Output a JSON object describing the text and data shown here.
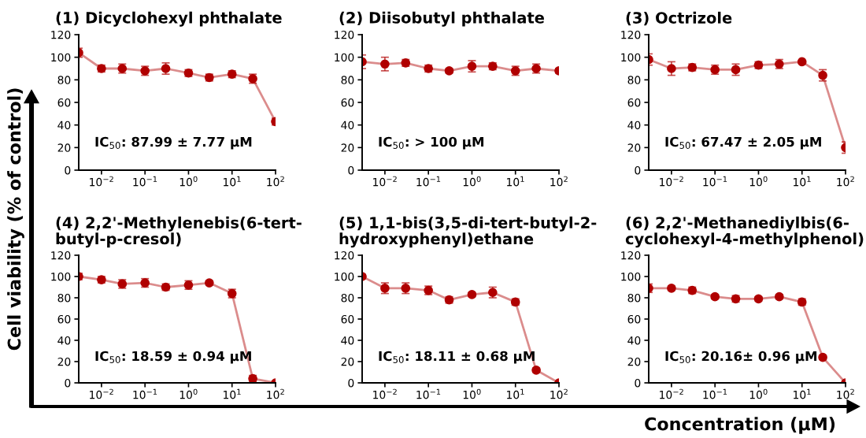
{
  "chart_data": [
    {
      "type": "line",
      "title": "(1) Dicyclohexyl phthalate",
      "x": [
        0.003,
        0.01,
        0.03,
        0.1,
        0.3,
        1,
        3,
        10,
        30,
        100
      ],
      "xlim": [
        0.003,
        100
      ],
      "ylim": [
        0,
        120
      ],
      "log": "x",
      "marker": "circle",
      "grid": false,
      "xticks": [
        {
          "value": 0.01,
          "label": "10$^{−2}$"
        },
        {
          "value": 0.1,
          "label": "10$^{−1}$"
        },
        {
          "value": 1,
          "label": "10$^{0}$"
        },
        {
          "value": 10,
          "label": "10$^{1}$"
        },
        {
          "value": 100,
          "label": "10$^{2}$"
        }
      ],
      "yticks": [
        0,
        20,
        40,
        60,
        80,
        100,
        120
      ],
      "series": [
        {
          "color": "#b00000",
          "values": [
            104,
            90,
            90,
            88,
            90,
            86,
            82,
            85,
            81,
            43
          ],
          "errors": [
            4,
            3,
            4,
            4,
            5,
            3,
            3,
            3,
            4,
            3
          ]
        }
      ],
      "annotations": [
        "IC$_{50}$: 87.99 ± 7.77 μM"
      ]
    },
    {
      "type": "line",
      "title": "(2) Diisobutyl phthalate",
      "x": [
        0.003,
        0.01,
        0.03,
        0.1,
        0.3,
        1,
        3,
        10,
        30,
        100
      ],
      "xlim": [
        0.003,
        100
      ],
      "ylim": [
        0,
        120
      ],
      "log": "x",
      "marker": "circle",
      "grid": false,
      "xticks": [
        {
          "value": 0.01,
          "label": "10$^{−2}$"
        },
        {
          "value": 0.1,
          "label": "10$^{−1}$"
        },
        {
          "value": 1,
          "label": "10$^{0}$"
        },
        {
          "value": 10,
          "label": "10$^{1}$"
        },
        {
          "value": 100,
          "label": "10$^{2}$"
        }
      ],
      "yticks": [
        0,
        20,
        40,
        60,
        80,
        100,
        120
      ],
      "series": [
        {
          "color": "#b00000",
          "values": [
            96,
            94,
            95,
            90,
            88,
            92,
            92,
            88,
            90,
            88
          ],
          "errors": [
            6,
            6,
            3,
            3,
            2,
            5,
            3,
            4,
            4,
            2
          ]
        }
      ],
      "annotations": [
        "IC$_{50}$: > 100 μM"
      ]
    },
    {
      "type": "line",
      "title": "(3) Octrizole",
      "x": [
        0.003,
        0.01,
        0.03,
        0.1,
        0.3,
        1,
        3,
        10,
        30,
        100
      ],
      "xlim": [
        0.003,
        100
      ],
      "ylim": [
        0,
        120
      ],
      "log": "x",
      "marker": "circle",
      "grid": false,
      "xticks": [
        {
          "value": 0.01,
          "label": "10$^{−2}$"
        },
        {
          "value": 0.1,
          "label": "10$^{−1}$"
        },
        {
          "value": 1,
          "label": "10$^{0}$"
        },
        {
          "value": 10,
          "label": "10$^{1}$"
        },
        {
          "value": 100,
          "label": "10$^{2}$"
        }
      ],
      "yticks": [
        0,
        20,
        40,
        60,
        80,
        100,
        120
      ],
      "series": [
        {
          "color": "#b00000",
          "values": [
            98,
            90,
            91,
            89,
            89,
            93,
            94,
            96,
            84,
            20
          ],
          "errors": [
            5,
            6,
            3,
            4,
            5,
            3,
            4,
            1,
            5,
            5
          ]
        }
      ],
      "annotations": [
        "IC$_{50}$: 67.47 ± 2.05 μM"
      ]
    },
    {
      "type": "line",
      "title": "(4) 2,2'-Methylenebis(6-tert-butyl-p-cresol)",
      "ylabel": "Cell viability (% of control)",
      "x": [
        0.003,
        0.01,
        0.03,
        0.1,
        0.3,
        1,
        3,
        10,
        30,
        100
      ],
      "xlim": [
        0.003,
        100
      ],
      "ylim": [
        0,
        120
      ],
      "log": "x",
      "marker": "circle",
      "grid": false,
      "xticks": [
        {
          "value": 0.01,
          "label": "10$^{−2}$"
        },
        {
          "value": 0.1,
          "label": "10$^{−1}$"
        },
        {
          "value": 1,
          "label": "10$^{0}$"
        },
        {
          "value": 10,
          "label": "10$^{1}$"
        },
        {
          "value": 100,
          "label": "10$^{2}$"
        }
      ],
      "yticks": [
        0,
        20,
        40,
        60,
        80,
        100,
        120
      ],
      "series": [
        {
          "color": "#b00000",
          "values": [
            100,
            97,
            93,
            94,
            90,
            92,
            94,
            84,
            4,
            0
          ],
          "errors": [
            3,
            3,
            4,
            4,
            3,
            4,
            2,
            4,
            3,
            1
          ]
        }
      ],
      "annotations": [
        "IC$_{50}$: 18.59 ± 0.94 μM"
      ]
    },
    {
      "type": "line",
      "title": "(5) 1,1-bis(3,5-di-tert-butyl-2-hydroxyphenyl)ethane",
      "xlabel": "Concentration (μM)",
      "x": [
        0.003,
        0.01,
        0.03,
        0.1,
        0.3,
        1,
        3,
        10,
        30,
        100
      ],
      "xlim": [
        0.003,
        100
      ],
      "ylim": [
        0,
        120
      ],
      "log": "x",
      "marker": "circle",
      "grid": false,
      "xticks": [
        {
          "value": 0.01,
          "label": "10$^{−2}$"
        },
        {
          "value": 0.1,
          "label": "10$^{−1}$"
        },
        {
          "value": 1,
          "label": "10$^{0}$"
        },
        {
          "value": 10,
          "label": "10$^{1}$"
        },
        {
          "value": 100,
          "label": "10$^{2}$"
        }
      ],
      "yticks": [
        0,
        20,
        40,
        60,
        80,
        100,
        120
      ],
      "series": [
        {
          "color": "#b00000",
          "values": [
            100,
            89,
            89,
            87,
            78,
            83,
            85,
            76,
            12,
            0
          ],
          "errors": [
            2,
            5,
            5,
            4,
            3,
            2,
            5,
            3,
            2,
            1
          ]
        }
      ],
      "annotations": [
        "IC$_{50}$: 18.11 ± 0.68 μM"
      ]
    },
    {
      "type": "line",
      "title": "(6) 2,2'-Methanediylbis(6-cyclohexyl-4-methylphenol)",
      "x": [
        0.003,
        0.01,
        0.03,
        0.1,
        0.3,
        1,
        3,
        10,
        30,
        100
      ],
      "xlim": [
        0.003,
        100
      ],
      "ylim": [
        0,
        120
      ],
      "log": "x",
      "marker": "circle",
      "grid": false,
      "xticks": [
        {
          "value": 0.01,
          "label": "10$^{−2}$"
        },
        {
          "value": 0.1,
          "label": "10$^{−1}$"
        },
        {
          "value": 1,
          "label": "10$^{0}$"
        },
        {
          "value": 10,
          "label": "10$^{1}$"
        },
        {
          "value": 100,
          "label": "10$^{2}$"
        }
      ],
      "yticks": [
        0,
        20,
        40,
        60,
        80,
        100,
        120
      ],
      "series": [
        {
          "color": "#b00000",
          "values": [
            89,
            89,
            87,
            81,
            79,
            79,
            81,
            76,
            24,
            0
          ],
          "errors": [
            4,
            2,
            3,
            2,
            3,
            2,
            2,
            3,
            2,
            1
          ]
        }
      ],
      "annotations": [
        "IC$_{50}$: 20.16± 0.96 μM"
      ]
    }
  ]
}
